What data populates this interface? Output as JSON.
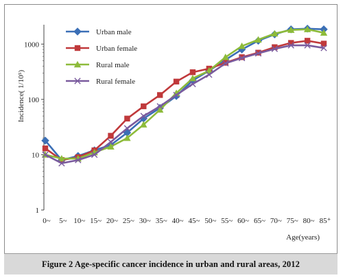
{
  "caption": "Figure 2    Age-specific cancer incidence in urban and rural areas, 2012",
  "chart_data": {
    "type": "line",
    "ylabel": "Incidence( 1/10⁵)",
    "xlabel": "Age(years)",
    "y_scale": "log",
    "ylim": [
      1,
      2000
    ],
    "y_ticks": [
      1,
      10,
      100,
      1000
    ],
    "y_tick_labels": [
      "1",
      "10",
      "100",
      "1000"
    ],
    "categories": [
      "0~",
      "5~",
      "10~",
      "15~",
      "20~",
      "25~",
      "30~",
      "35~",
      "40~",
      "45~",
      "50~",
      "55~",
      "60~",
      "65~",
      "70~",
      "75~",
      "80~",
      "85⁺"
    ],
    "legend_placement": "top-left",
    "grid": false,
    "series": [
      {
        "name": "Urban male",
        "color": "#3b6fb6",
        "marker": "diamond",
        "values": [
          18,
          8,
          9.5,
          12,
          15,
          25,
          45,
          70,
          115,
          220,
          330,
          520,
          800,
          1150,
          1500,
          1850,
          1900,
          1850
        ]
      },
      {
        "name": "Urban female",
        "color": "#c0393b",
        "marker": "square",
        "values": [
          13,
          8,
          9,
          12,
          22,
          45,
          75,
          120,
          210,
          310,
          360,
          460,
          580,
          700,
          880,
          1050,
          1150,
          1020
        ]
      },
      {
        "name": "Rural male",
        "color": "#8dbb3a",
        "marker": "triangle",
        "values": [
          10,
          8.5,
          8.5,
          11,
          14,
          20,
          35,
          65,
          130,
          240,
          330,
          580,
          920,
          1200,
          1550,
          1800,
          1850,
          1600
        ]
      },
      {
        "name": "Rural female",
        "color": "#7a5b9e",
        "marker": "x",
        "values": [
          10,
          7,
          8,
          10,
          17,
          30,
          50,
          75,
          120,
          190,
          280,
          450,
          560,
          680,
          820,
          950,
          950,
          850
        ]
      }
    ]
  }
}
